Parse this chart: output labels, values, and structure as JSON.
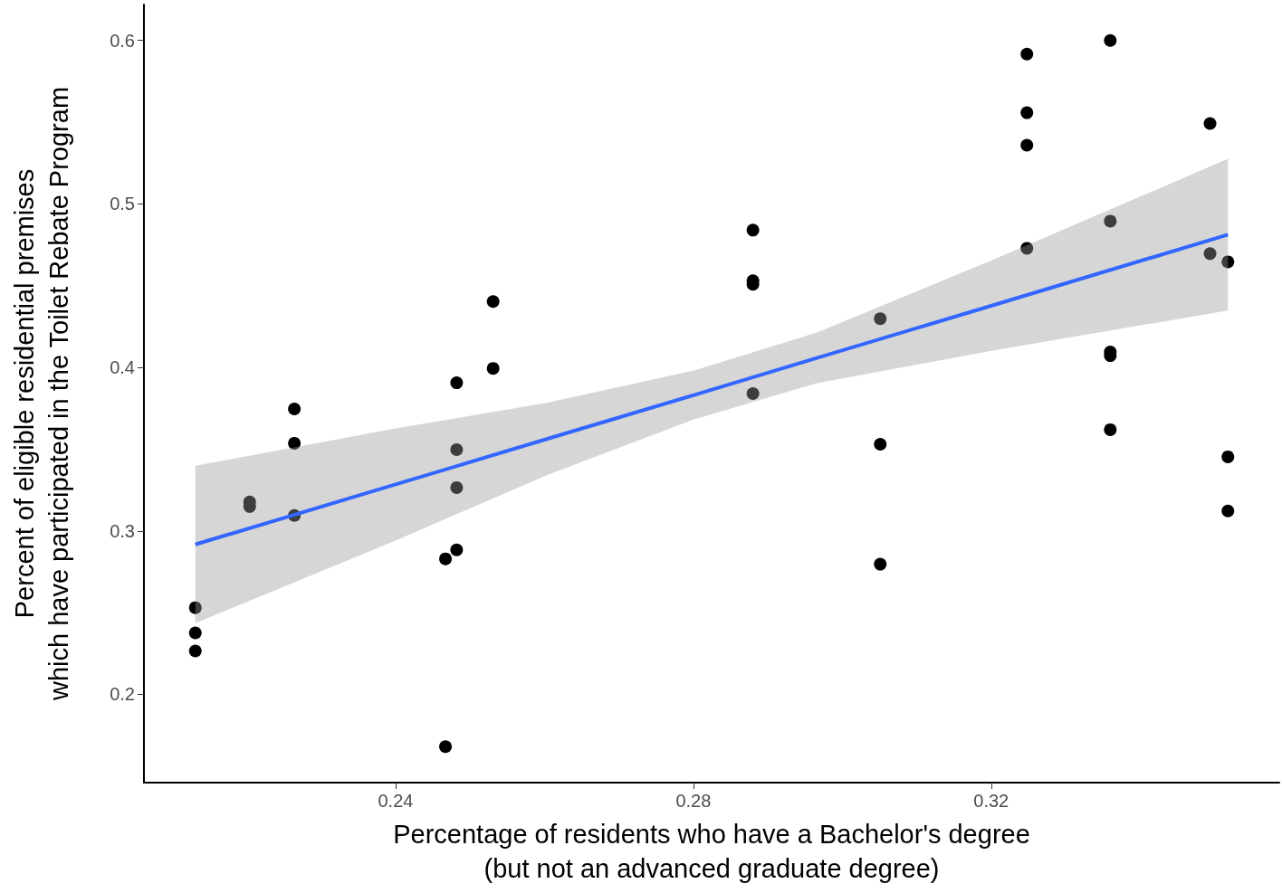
{
  "chart_data": {
    "type": "scatter",
    "xlabel": "Percentage of residents who have a Bachelor's degree\n(but not an advanced graduate degree)",
    "ylabel": "Percent of eligible residential premises\nwhich have participated in the Toilet Rebate Program",
    "xlim": [
      0.2062,
      0.3587
    ],
    "ylim": [
      0.146,
      0.622
    ],
    "xticks": [
      0.24,
      0.28,
      0.32
    ],
    "yticks": [
      0.2,
      0.3,
      0.4,
      0.5,
      0.6
    ],
    "grid": false,
    "marker": "circle",
    "series": [
      {
        "color": "#000000",
        "x": [
          0.2131,
          0.2131,
          0.2131,
          0.2204,
          0.2204,
          0.2264,
          0.2264,
          0.2264,
          0.2467,
          0.2467,
          0.2482,
          0.2482,
          0.2482,
          0.2482,
          0.2531,
          0.2531,
          0.288,
          0.288,
          0.288,
          0.288,
          0.3051,
          0.3051,
          0.3051,
          0.3248,
          0.3248,
          0.3248,
          0.3248,
          0.336,
          0.336,
          0.336,
          0.336,
          0.336,
          0.3494,
          0.3494,
          0.3518,
          0.3518,
          0.3518
        ],
        "values": [
          0.253,
          0.2376,
          0.2265,
          0.3177,
          0.3149,
          0.3746,
          0.3536,
          0.3094,
          0.2829,
          0.168,
          0.3906,
          0.3497,
          0.3265,
          0.2884,
          0.4403,
          0.3994,
          0.484,
          0.453,
          0.4508,
          0.384,
          0.4298,
          0.353,
          0.2796,
          0.5917,
          0.5558,
          0.5359,
          0.4729,
          0.6,
          0.4895,
          0.4094,
          0.4072,
          0.3619,
          0.5492,
          0.4696,
          0.4646,
          0.3453,
          0.3122
        ]
      },
      {
        "type": "line",
        "color": "#3366ff",
        "marker": "none",
        "x": [
          0.2131,
          0.24,
          0.2603,
          0.28,
          0.2966,
          0.32,
          0.3518
        ],
        "values": [
          0.2917,
          0.3284,
          0.3562,
          0.383,
          0.4058,
          0.4377,
          0.4812
        ],
        "lower": [
          0.2436,
          0.2941,
          0.3341,
          0.3681,
          0.3903,
          0.4101,
          0.4348
        ],
        "upper": [
          0.3398,
          0.3627,
          0.3783,
          0.398,
          0.4213,
          0.4654,
          0.5276
        ]
      }
    ]
  }
}
